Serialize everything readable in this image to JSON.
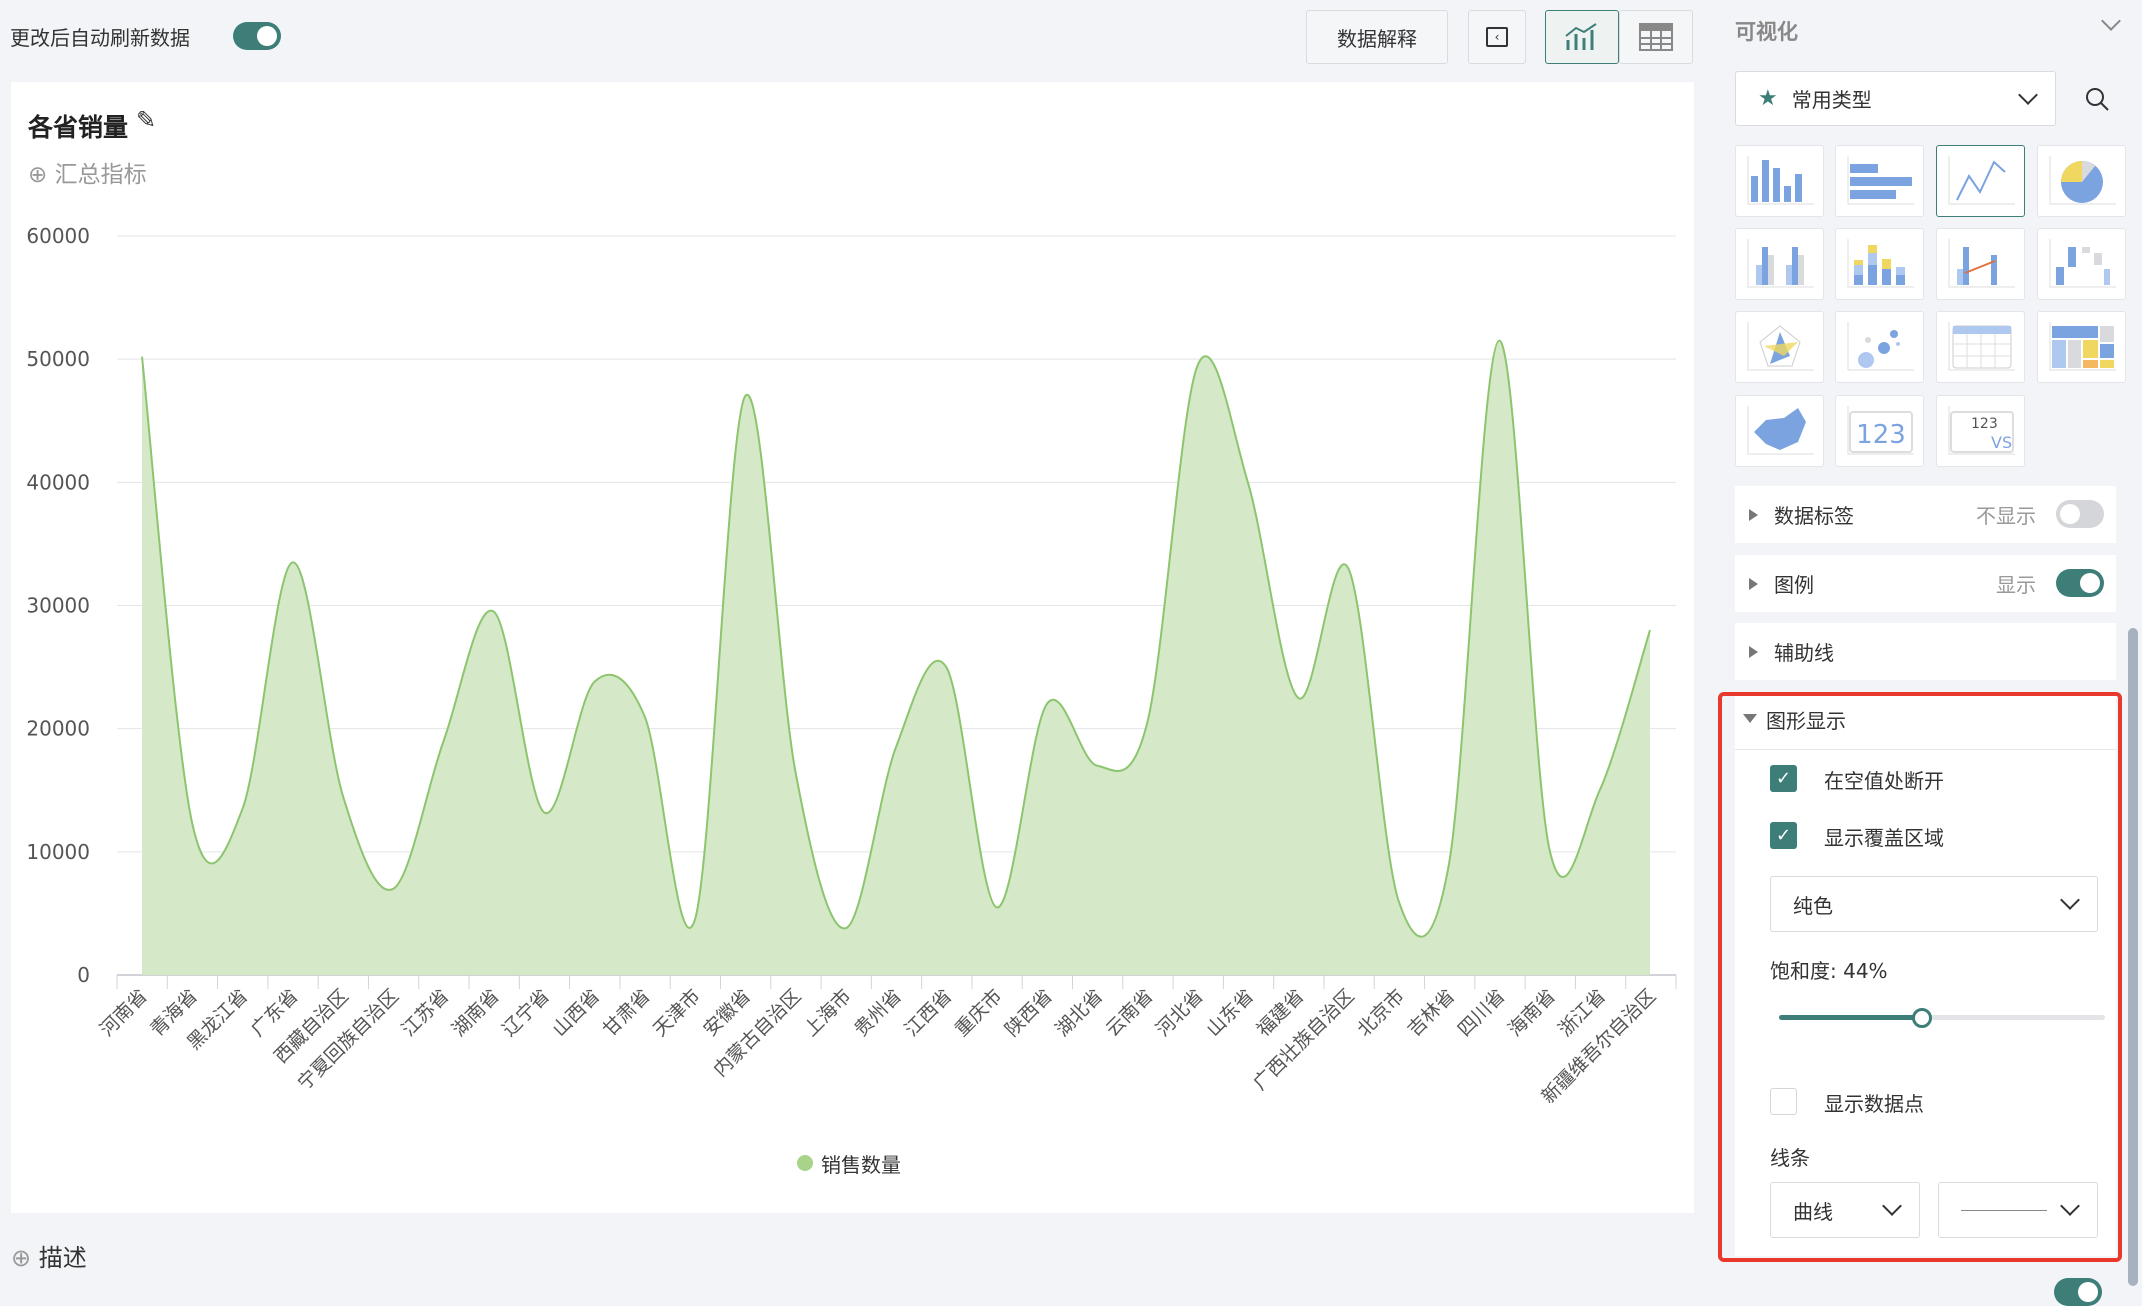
{
  "toolbar": {
    "auto_refresh_label": "更改后自动刷新数据",
    "auto_refresh_on": true,
    "explain_button": "数据解释",
    "view_chart_icon": "chart-icon",
    "view_table_icon": "table-icon",
    "collapse_icon": "panel-collapse-icon"
  },
  "card": {
    "title": "各省销量",
    "edit_icon": "pencil-icon",
    "add_metric": "汇总指标",
    "description": "描述"
  },
  "colors": {
    "accent": "#3d7f78",
    "area_fill": "#d5e9c8",
    "area_line": "#8cc56e",
    "highlight_border": "#e8392c"
  },
  "chart_data": {
    "type": "area",
    "categories": [
      "河南省",
      "青海省",
      "黑龙江省",
      "广东省",
      "西藏自治区",
      "宁夏回族自治区",
      "江苏省",
      "湖南省",
      "辽宁省",
      "山西省",
      "甘肃省",
      "天津市",
      "安徽省",
      "内蒙古自治区",
      "上海市",
      "贵州省",
      "江西省",
      "重庆市",
      "陕西省",
      "湖北省",
      "云南省",
      "河北省",
      "山东省",
      "福建省",
      "广西壮族自治区",
      "北京市",
      "吉林省",
      "四川省",
      "海南省",
      "浙江省",
      "新疆维吾尔自治区"
    ],
    "series": [
      {
        "name": "销售数量",
        "values": [
          50200,
          12300,
          13500,
          33500,
          14500,
          7000,
          19000,
          29500,
          13200,
          23800,
          21000,
          4500,
          47000,
          16500,
          3800,
          18500,
          25000,
          5500,
          22000,
          17000,
          20500,
          49500,
          40000,
          22500,
          33000,
          6000,
          9000,
          51500,
          10200,
          15000,
          28000
        ]
      }
    ],
    "ylim": [
      0,
      60000
    ],
    "yticks": [
      "0",
      "10000",
      "20000",
      "30000",
      "40000",
      "50000",
      "60000"
    ],
    "grid": true,
    "curve": "smooth",
    "legend": "bottom"
  },
  "panel": {
    "title": "可视化",
    "chart_type_select": "常用类型",
    "chart_types": [
      "column",
      "bar",
      "line",
      "pie",
      "grouped-column",
      "stacked-column",
      "combo",
      "waterfall",
      "radar",
      "scatter",
      "table",
      "treemap",
      "map",
      "kpi",
      "kpi-compare"
    ],
    "selected_chart_type": "line",
    "kpi_text": "123",
    "kpi_vs": "VS",
    "data_label": {
      "label": "数据标签",
      "state": "不显示",
      "on": false
    },
    "legend": {
      "label": "图例",
      "state": "显示",
      "on": true
    },
    "guide_line": {
      "label": "辅助线"
    },
    "shape": {
      "label": "图形显示",
      "break_on_null": "在空值处断开",
      "break_on_null_checked": true,
      "show_area": "显示覆盖区域",
      "show_area_checked": true,
      "fill_mode": "纯色",
      "saturation_label": "饱和度: 44%",
      "saturation": 44,
      "show_points": "显示数据点",
      "show_points_checked": false,
      "line_label": "线条",
      "line_type": "曲线"
    }
  }
}
